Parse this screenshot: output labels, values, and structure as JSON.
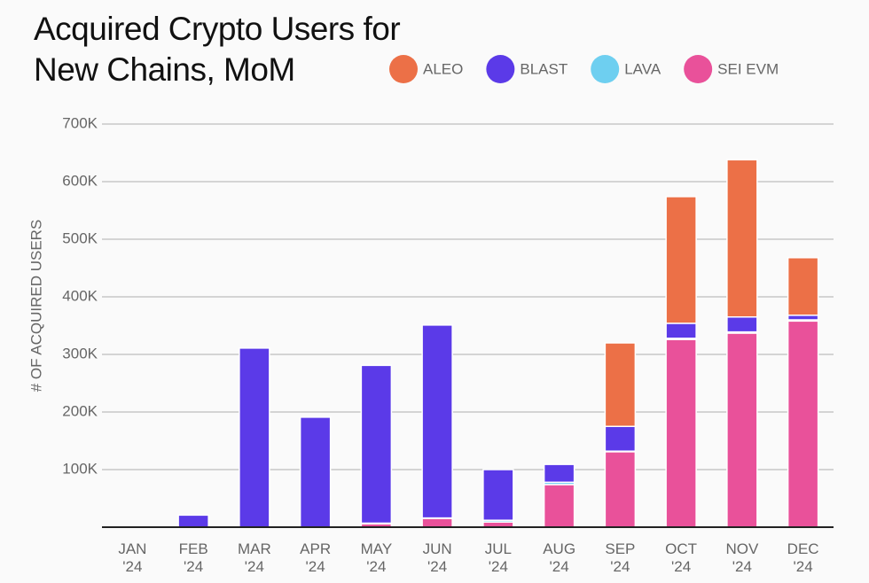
{
  "chart_data": {
    "type": "stacked-bar",
    "title": "Acquired Crypto Users for New Chains, MoM",
    "y_label": "# OF ACQUIRED USERS",
    "categories": [
      "JAN '24",
      "FEB '24",
      "MAR '24",
      "APR '24",
      "MAY '24",
      "JUN '24",
      "JUL '24",
      "AUG '24",
      "SEP '24",
      "OCT '24",
      "NOV '24",
      "DEC '24"
    ],
    "series": [
      {
        "name": "SEI EVM",
        "color": "#e9519a",
        "values": [
          0,
          0,
          0,
          0,
          6,
          15,
          9,
          74,
          131,
          326,
          337,
          358
        ]
      },
      {
        "name": "LAVA",
        "color": "#6ecff0",
        "values": [
          0,
          0,
          0,
          0,
          1,
          1,
          3,
          4,
          1,
          2,
          2,
          2
        ]
      },
      {
        "name": "BLAST",
        "color": "#5b3ae8",
        "values": [
          0,
          21,
          311,
          191,
          274,
          335,
          88,
          31,
          43,
          26,
          26,
          8
        ]
      },
      {
        "name": "ALEO",
        "color": "#ec7047",
        "values": [
          0,
          0,
          0,
          0,
          0,
          0,
          0,
          0,
          145,
          220,
          273,
          100
        ]
      }
    ],
    "legend_order": [
      "ALEO",
      "BLAST",
      "LAVA",
      "SEI EVM"
    ],
    "ylim": [
      0,
      700
    ],
    "yticks": [
      {
        "value": 100,
        "label": "100K"
      },
      {
        "value": 200,
        "label": "200K"
      },
      {
        "value": 300,
        "label": "300K"
      },
      {
        "value": 400,
        "label": "400K"
      },
      {
        "value": 500,
        "label": "500K"
      },
      {
        "value": 600,
        "label": "600K"
      },
      {
        "value": 700,
        "label": "700K"
      }
    ],
    "grid": true
  }
}
